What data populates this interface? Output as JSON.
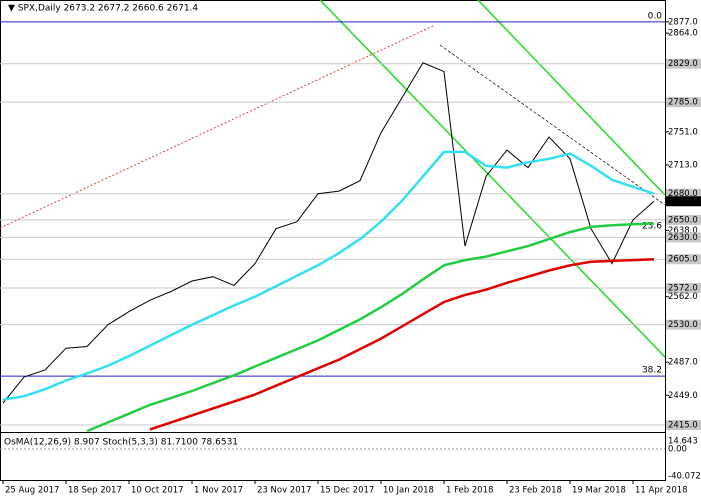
{
  "header": "▼ SPX,Daily  2673.2 2677.2 2660.6 2671.4",
  "chart_data": {
    "type": "line",
    "categories": [
      "25 Aug 2017",
      null,
      null,
      "18 Sep 2017",
      null,
      null,
      "10 Oct 2017",
      null,
      null,
      "1 Nov 2017",
      null,
      null,
      "23 Nov 2017",
      null,
      null,
      "15 Dec 2017",
      null,
      null,
      "10 Jan 2018",
      null,
      null,
      "1 Feb 2018",
      null,
      null,
      "23 Feb 2018",
      null,
      null,
      "19 Mar 2018",
      null,
      null,
      "11 Apr 2018",
      null
    ],
    "series": [
      {
        "color": "#000000",
        "values": [
          2440,
          2470,
          2478,
          2503,
          2505,
          2530,
          2545,
          2558,
          2568,
          2580,
          2585,
          2575,
          2600,
          2640,
          2648,
          2680,
          2683,
          2695,
          2750,
          2790,
          2830,
          2820,
          2620,
          2700,
          2730,
          2710,
          2745,
          2720,
          2640,
          2600,
          2650,
          2671.4
        ]
      },
      {
        "color": "#33e0f0",
        "values": [
          2444,
          2448,
          2456,
          2466,
          2474,
          2483,
          2494,
          2506,
          2518,
          2530,
          2541,
          2552,
          2562,
          2574,
          2586,
          2598,
          2612,
          2628,
          2648,
          2672,
          2700,
          2728,
          2728,
          2712,
          2710,
          2716,
          2720,
          2726,
          2712,
          2696,
          2688,
          2680
        ]
      },
      {
        "color": "#22cc44",
        "values": [
          null,
          null,
          null,
          null,
          2408,
          2418,
          2428,
          2438,
          2446,
          2454,
          2463,
          2472,
          2482,
          2492,
          2502,
          2512,
          2524,
          2536,
          2550,
          2565,
          2582,
          2598,
          2604,
          2608,
          2614,
          2620,
          2628,
          2636,
          2642,
          2644,
          2645,
          2646
        ]
      },
      {
        "color": "#e00000",
        "values": [
          null,
          null,
          null,
          null,
          null,
          null,
          null,
          2410,
          2418,
          2426,
          2434,
          2442,
          2450,
          2460,
          2470,
          2480,
          2490,
          2502,
          2514,
          2528,
          2542,
          2556,
          2564,
          2570,
          2578,
          2585,
          2592,
          2598,
          2602,
          2603,
          2604,
          2605
        ]
      }
    ],
    "ylim": [
      2407,
      2902
    ],
    "yticks": [
      {
        "value": 2877,
        "label": "2877.0"
      },
      {
        "value": 2864,
        "label": "2864.0"
      },
      {
        "value": 2829,
        "label": "2829.0"
      },
      {
        "value": 2785,
        "label": "2785.0"
      },
      {
        "value": 2751,
        "label": "2751.0"
      },
      {
        "value": 2713,
        "label": "2713.0"
      },
      {
        "value": 2680,
        "label": "2680.0"
      },
      2671.4,
      {
        "value": 2650,
        "label": "2650.0"
      },
      {
        "value": 2638,
        "label": "2638.0"
      },
      {
        "value": 2630,
        "label": "2630.0"
      },
      {
        "value": 2605,
        "label": "2605.0"
      },
      {
        "value": 2572,
        "label": "2572.0"
      },
      {
        "value": 2562,
        "label": "2562.0"
      },
      {
        "value": 2530,
        "label": "2530.0"
      },
      {
        "value": 2487,
        "label": "2487.0"
      },
      {
        "value": 2449,
        "label": "2449.0"
      },
      {
        "value": 2415,
        "label": "2415.0"
      }
    ],
    "levels": [
      2829,
      2785,
      2680,
      2650,
      2630,
      2605,
      2572,
      2530,
      2415
    ],
    "fib_levels": [
      {
        "level": {
          "value": 0,
          "label": "0.0"
        },
        "price": 2877
      },
      {
        "level": 23.6,
        "price": 2636
      },
      {
        "level": 38.2,
        "price": 2471
      }
    ],
    "oscillator": {
      "title": "OsMA(12,26,9) 8.907 Stoch(5,3,3) 81.7100 78.6531",
      "ticks": [
        "14.643",
        "0.00",
        "-40.072"
      ]
    }
  }
}
